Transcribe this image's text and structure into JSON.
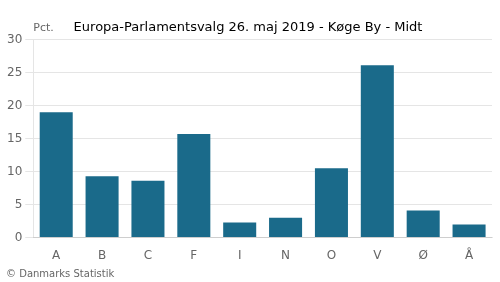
{
  "chart_data": {
    "type": "bar",
    "title": "Europa-Parlamentsvalg 26. maj 2019 - Køge By - Midt",
    "categories": [
      "A",
      "B",
      "C",
      "F",
      "I",
      "N",
      "O",
      "V",
      "Ø",
      "Å"
    ],
    "values": [
      19.0,
      9.3,
      8.6,
      15.7,
      2.3,
      3.0,
      10.5,
      26.1,
      4.1,
      2.0
    ],
    "color": "#1a6a8a",
    "ylabel": "Pct.",
    "footer": "© Danmarks Statistik",
    "ylim": [
      0,
      30
    ],
    "yticks": [
      0,
      5,
      10,
      15,
      20,
      25,
      30
    ],
    "grid": true
  }
}
